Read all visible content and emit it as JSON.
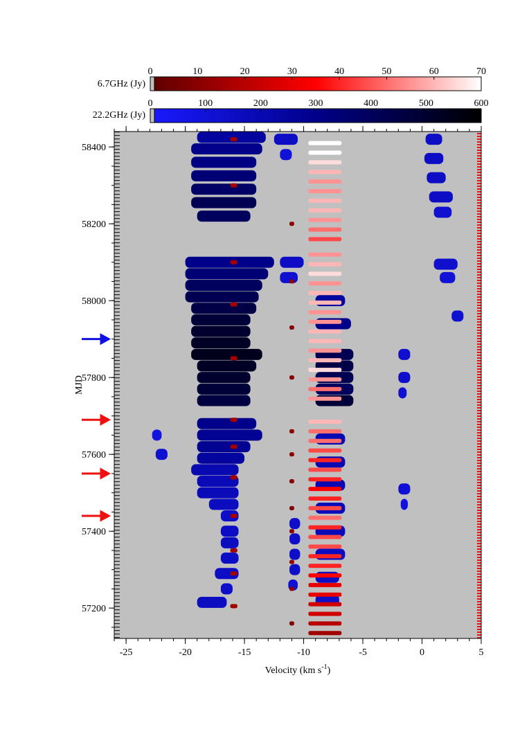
{
  "chart_data": {
    "type": "heatmap",
    "xlabel": "Velocity (km s",
    "xlabel_sup": "-1",
    "xlabel_end": ")",
    "ylabel": "MJD",
    "xlim": [
      -26,
      5
    ],
    "xticks": [
      -25,
      -20,
      -15,
      -10,
      -5,
      0,
      5
    ],
    "ylim": [
      57121,
      58440
    ],
    "yticks": [
      57200,
      57400,
      57600,
      57800,
      58000,
      58200,
      58400
    ],
    "background": "#c0c0c0",
    "series": [
      {
        "name": "22.2GHz (Jy)",
        "colors": [
          "#1a1aff",
          "#00008b",
          "#000000"
        ],
        "clim": [
          0,
          600
        ],
        "cticks": [
          0,
          100,
          200,
          300,
          400,
          500,
          600
        ],
        "y": [
          58425,
          58395,
          58360,
          58325,
          58290,
          58255,
          58220,
          58420,
          58370,
          58320,
          58270,
          58230,
          58420,
          58380,
          58100,
          58070,
          58040,
          58010,
          57980,
          57950,
          57920,
          57890,
          57860,
          57830,
          57800,
          57770,
          57740,
          57860,
          57830,
          57800,
          57770,
          57740,
          58100,
          58060,
          58095,
          58060,
          57960,
          57860,
          57800,
          57760,
          57680,
          57650,
          57620,
          57590,
          57560,
          57530,
          57500,
          57470,
          57600,
          57650,
          57440,
          57400,
          57370,
          57330,
          57290,
          57250,
          57215,
          57420,
          57380,
          57340,
          57300,
          57260,
          57510,
          57470,
          57640,
          57580,
          57520,
          57460,
          57400,
          57340,
          57280,
          57220,
          58000,
          57940
        ],
        "x_start": [
          -19,
          -19.5,
          -19.5,
          -19.5,
          -19.5,
          -19.5,
          -19,
          0.3,
          0.2,
          0.4,
          0.6,
          1,
          -12.5,
          -12,
          -20,
          -20,
          -20,
          -20,
          -19.5,
          -19.5,
          -19.5,
          -19.5,
          -19.5,
          -19,
          -19,
          -19,
          -19,
          -9,
          -9,
          -9,
          -9,
          -9,
          -12,
          -12,
          1,
          1.5,
          2.5,
          -2,
          -2,
          -2,
          -19,
          -19,
          -19,
          -19,
          -19.5,
          -19,
          -19,
          -18,
          -22.5,
          -22.8,
          -17,
          -17,
          -17,
          -17,
          -17.5,
          -17,
          -19,
          -11.2,
          -11.2,
          -11.2,
          -11.2,
          -11.3,
          -2,
          -1.8,
          -9,
          -9,
          -9,
          -9,
          -9,
          -9,
          -9,
          -9,
          -9,
          -9
        ],
        "x_end": [
          -13.2,
          -13.5,
          -14,
          -14,
          -14,
          -14,
          -14.5,
          1.7,
          1.8,
          2,
          2.6,
          2.5,
          -10.5,
          -11,
          -12.5,
          -13,
          -13.5,
          -13.8,
          -14,
          -14.5,
          -14.5,
          -14.5,
          -13.5,
          -14,
          -14.5,
          -14.5,
          -14.5,
          -5.8,
          -5.8,
          -5.8,
          -5.8,
          -5.8,
          -10,
          -10.5,
          3,
          2.8,
          3.5,
          -1,
          -1,
          -1.3,
          -14,
          -13.5,
          -14.5,
          -15,
          -15.5,
          -15.5,
          -15.5,
          -15.5,
          -21.5,
          -22,
          -15.5,
          -15.5,
          -15.5,
          -15.5,
          -15.5,
          -16,
          -16.5,
          -10.3,
          -10.3,
          -10.3,
          -10.3,
          -10.5,
          -1,
          -1.2,
          -6.5,
          -6.5,
          -6.5,
          -6.5,
          -6.5,
          -6.5,
          -7,
          -7,
          -6.5,
          -6
        ],
        "values": [
          250,
          300,
          320,
          350,
          380,
          420,
          400,
          150,
          150,
          150,
          150,
          120,
          150,
          100,
          300,
          350,
          400,
          420,
          450,
          480,
          500,
          520,
          540,
          520,
          500,
          480,
          460,
          420,
          450,
          420,
          400,
          480,
          150,
          120,
          130,
          100,
          120,
          130,
          140,
          120,
          300,
          280,
          280,
          250,
          200,
          180,
          180,
          160,
          120,
          80,
          140,
          150,
          160,
          150,
          150,
          140,
          160,
          140,
          140,
          140,
          140,
          120,
          110,
          90,
          200,
          200,
          200,
          180,
          180,
          160,
          160,
          140,
          250,
          300
        ]
      },
      {
        "name": "6.7GHz  (Jy)",
        "colors": [
          "#5a0000",
          "#ff0000",
          "#ffffff"
        ],
        "clim": [
          0,
          70
        ],
        "cticks": [
          0,
          10,
          20,
          30,
          40,
          50,
          60,
          70
        ],
        "y": [
          57135,
          57160,
          57185,
          57210,
          57235,
          57260,
          57285,
          57310,
          57335,
          57360,
          57385,
          57410,
          57435,
          57460,
          57485,
          57510,
          57535,
          57560,
          57585,
          57610,
          57635,
          57660,
          57685,
          57745,
          57770,
          57795,
          57820,
          57845,
          57870,
          57895,
          57920,
          57945,
          57970,
          57995,
          58020,
          58045,
          58070,
          58095,
          58120,
          58160,
          58185,
          58210,
          58235,
          58260,
          58285,
          58310,
          58335,
          58360,
          58385,
          58410,
          57160,
          57250,
          57320,
          57400,
          57460,
          57530,
          57600,
          57660,
          57800,
          57930,
          58050,
          58200,
          57205,
          57290,
          57350,
          57440,
          57540,
          57620,
          57690,
          57850,
          57990,
          58100,
          58300,
          58420
        ],
        "x_start": [
          -9.6,
          -9.6,
          -9.6,
          -9.6,
          -9.6,
          -9.6,
          -9.6,
          -9.6,
          -9.6,
          -9.6,
          -9.6,
          -9.6,
          -9.6,
          -9.6,
          -9.6,
          -9.6,
          -9.6,
          -9.6,
          -9.6,
          -9.6,
          -9.6,
          -9.6,
          -9.6,
          -9.6,
          -9.6,
          -9.6,
          -9.6,
          -9.6,
          -9.6,
          -9.6,
          -9.6,
          -9.6,
          -9.6,
          -9.6,
          -9.6,
          -9.6,
          -9.6,
          -9.6,
          -9.6,
          -9.6,
          -9.6,
          -9.6,
          -9.6,
          -9.6,
          -9.6,
          -9.6,
          -9.6,
          -9.6,
          -9.6,
          -9.6,
          -11.2,
          -11.2,
          -11.2,
          -11.2,
          -11.2,
          -11.2,
          -11.2,
          -11.2,
          -11.2,
          -11.2,
          -11.2,
          -11.2,
          -16.2,
          -16.2,
          -16.2,
          -16.2,
          -16.2,
          -16.2,
          -16.2,
          -16.2,
          -16.2,
          -16.2,
          -16.2,
          -16.2
        ],
        "x_end": [
          -6.8,
          -6.8,
          -6.8,
          -6.8,
          -6.8,
          -6.8,
          -6.8,
          -6.8,
          -6.8,
          -6.8,
          -6.8,
          -6.8,
          -6.8,
          -6.8,
          -6.8,
          -6.8,
          -6.8,
          -6.8,
          -6.8,
          -6.8,
          -6.8,
          -6.8,
          -6.8,
          -6.8,
          -6.8,
          -6.8,
          -6.8,
          -6.8,
          -6.8,
          -6.8,
          -6.8,
          -6.8,
          -6.8,
          -6.8,
          -6.8,
          -6.8,
          -6.8,
          -6.8,
          -6.8,
          -6.8,
          -6.8,
          -6.8,
          -6.8,
          -6.8,
          -6.8,
          -6.8,
          -6.8,
          -6.8,
          -6.8,
          -6.8,
          -10.8,
          -10.8,
          -10.8,
          -10.8,
          -10.8,
          -10.8,
          -10.8,
          -10.8,
          -10.8,
          -10.8,
          -10.8,
          -10.8,
          -15.6,
          -15.6,
          -15.6,
          -15.6,
          -15.6,
          -15.6,
          -15.6,
          -15.6,
          -15.6,
          -15.6,
          -15.6,
          -15.6
        ],
        "values": [
          15,
          20,
          25,
          25,
          30,
          30,
          35,
          40,
          40,
          45,
          45,
          40,
          50,
          45,
          40,
          35,
          40,
          45,
          40,
          45,
          50,
          50,
          60,
          55,
          50,
          55,
          65,
          60,
          55,
          60,
          60,
          55,
          55,
          60,
          60,
          55,
          65,
          60,
          55,
          45,
          50,
          55,
          60,
          60,
          55,
          55,
          60,
          65,
          70,
          70,
          8,
          10,
          12,
          10,
          9,
          10,
          11,
          10,
          9,
          10,
          12,
          10,
          15,
          15,
          15,
          15,
          15,
          15,
          15,
          15,
          15,
          15,
          15,
          15
        ]
      }
    ],
    "arrows": [
      {
        "y": 57900,
        "color": "#1010e0"
      },
      {
        "y": 57690,
        "color": "#ee1010"
      },
      {
        "y": 57550,
        "color": "#ee1010"
      },
      {
        "y": 57440,
        "color": "#ee1010"
      }
    ]
  }
}
